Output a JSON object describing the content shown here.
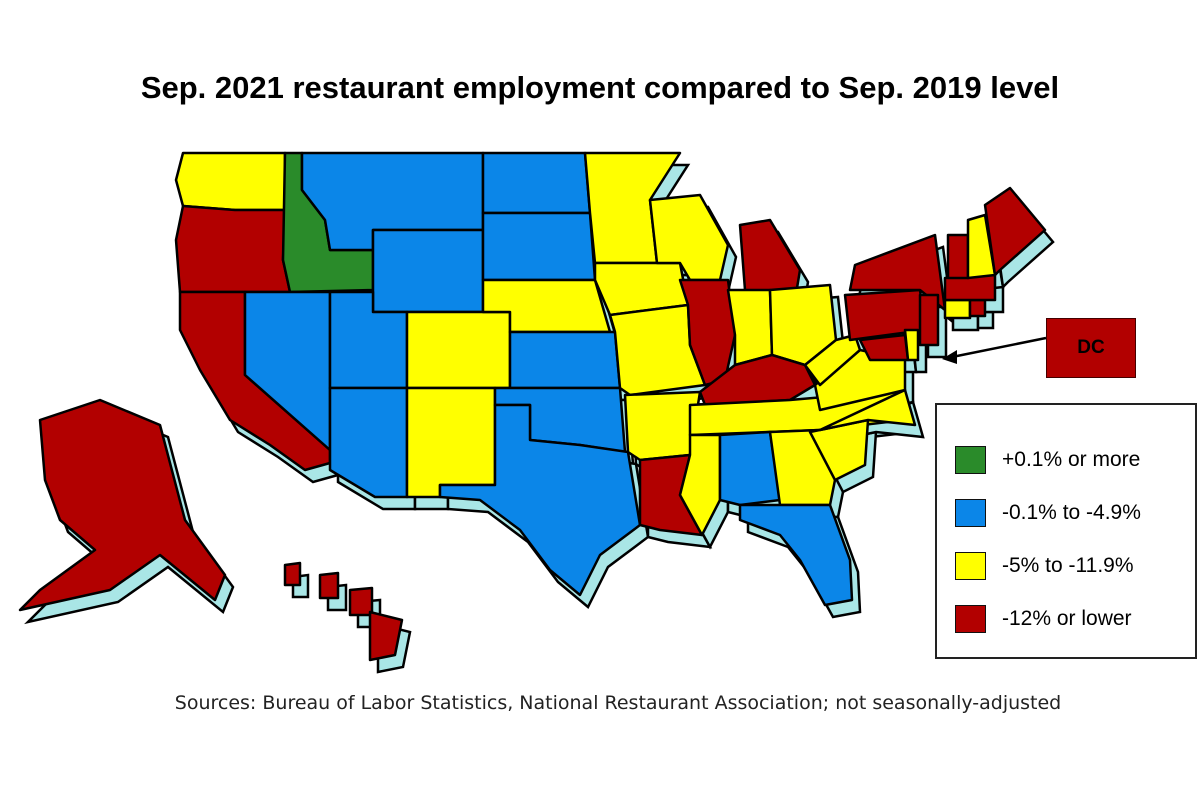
{
  "title": "Sep. 2021 restaurant employment compared to Sep. 2019 level",
  "source": "Sources: Bureau of Labor Statistics, National Restaurant Association; not seasonally-adjusted",
  "colors": {
    "green": "#2a8b2a",
    "blue": "#0b86e8",
    "yellow": "#ffff00",
    "red": "#b20000",
    "extrusion": "#a9e6e6",
    "border": "#000000"
  },
  "legend": {
    "items": [
      {
        "label": "+0.1% or more",
        "category": "green"
      },
      {
        "label": "-0.1% to -4.9%",
        "category": "blue"
      },
      {
        "label": "-5% to -11.9%",
        "category": "yellow"
      },
      {
        "label": "-12% or lower",
        "category": "red"
      }
    ]
  },
  "callout": {
    "label": "DC",
    "category": "red"
  },
  "states": {
    "WA": "yellow",
    "OR": "red",
    "CA": "red",
    "ID": "green",
    "NV": "blue",
    "MT": "blue",
    "WY": "blue",
    "UT": "blue",
    "AZ": "blue",
    "CO": "yellow",
    "NM": "yellow",
    "ND": "blue",
    "SD": "blue",
    "NE": "yellow",
    "KS": "blue",
    "OK": "blue",
    "TX": "blue",
    "MN": "yellow",
    "IA": "yellow",
    "MO": "yellow",
    "AR": "yellow",
    "LA": "red",
    "WI": "yellow",
    "IL": "red",
    "MI": "red",
    "IN": "yellow",
    "OH": "yellow",
    "KY": "red",
    "TN": "yellow",
    "MS": "yellow",
    "AL": "blue",
    "GA": "yellow",
    "FL": "blue",
    "SC": "yellow",
    "NC": "yellow",
    "VA": "yellow",
    "WV": "yellow",
    "PA": "red",
    "NY": "red",
    "MD": "red",
    "DE": "yellow",
    "NJ": "red",
    "CT": "yellow",
    "RI": "red",
    "MA": "red",
    "VT": "red",
    "NH": "yellow",
    "ME": "red",
    "AK": "red",
    "HI": "red",
    "DC": "red"
  }
}
